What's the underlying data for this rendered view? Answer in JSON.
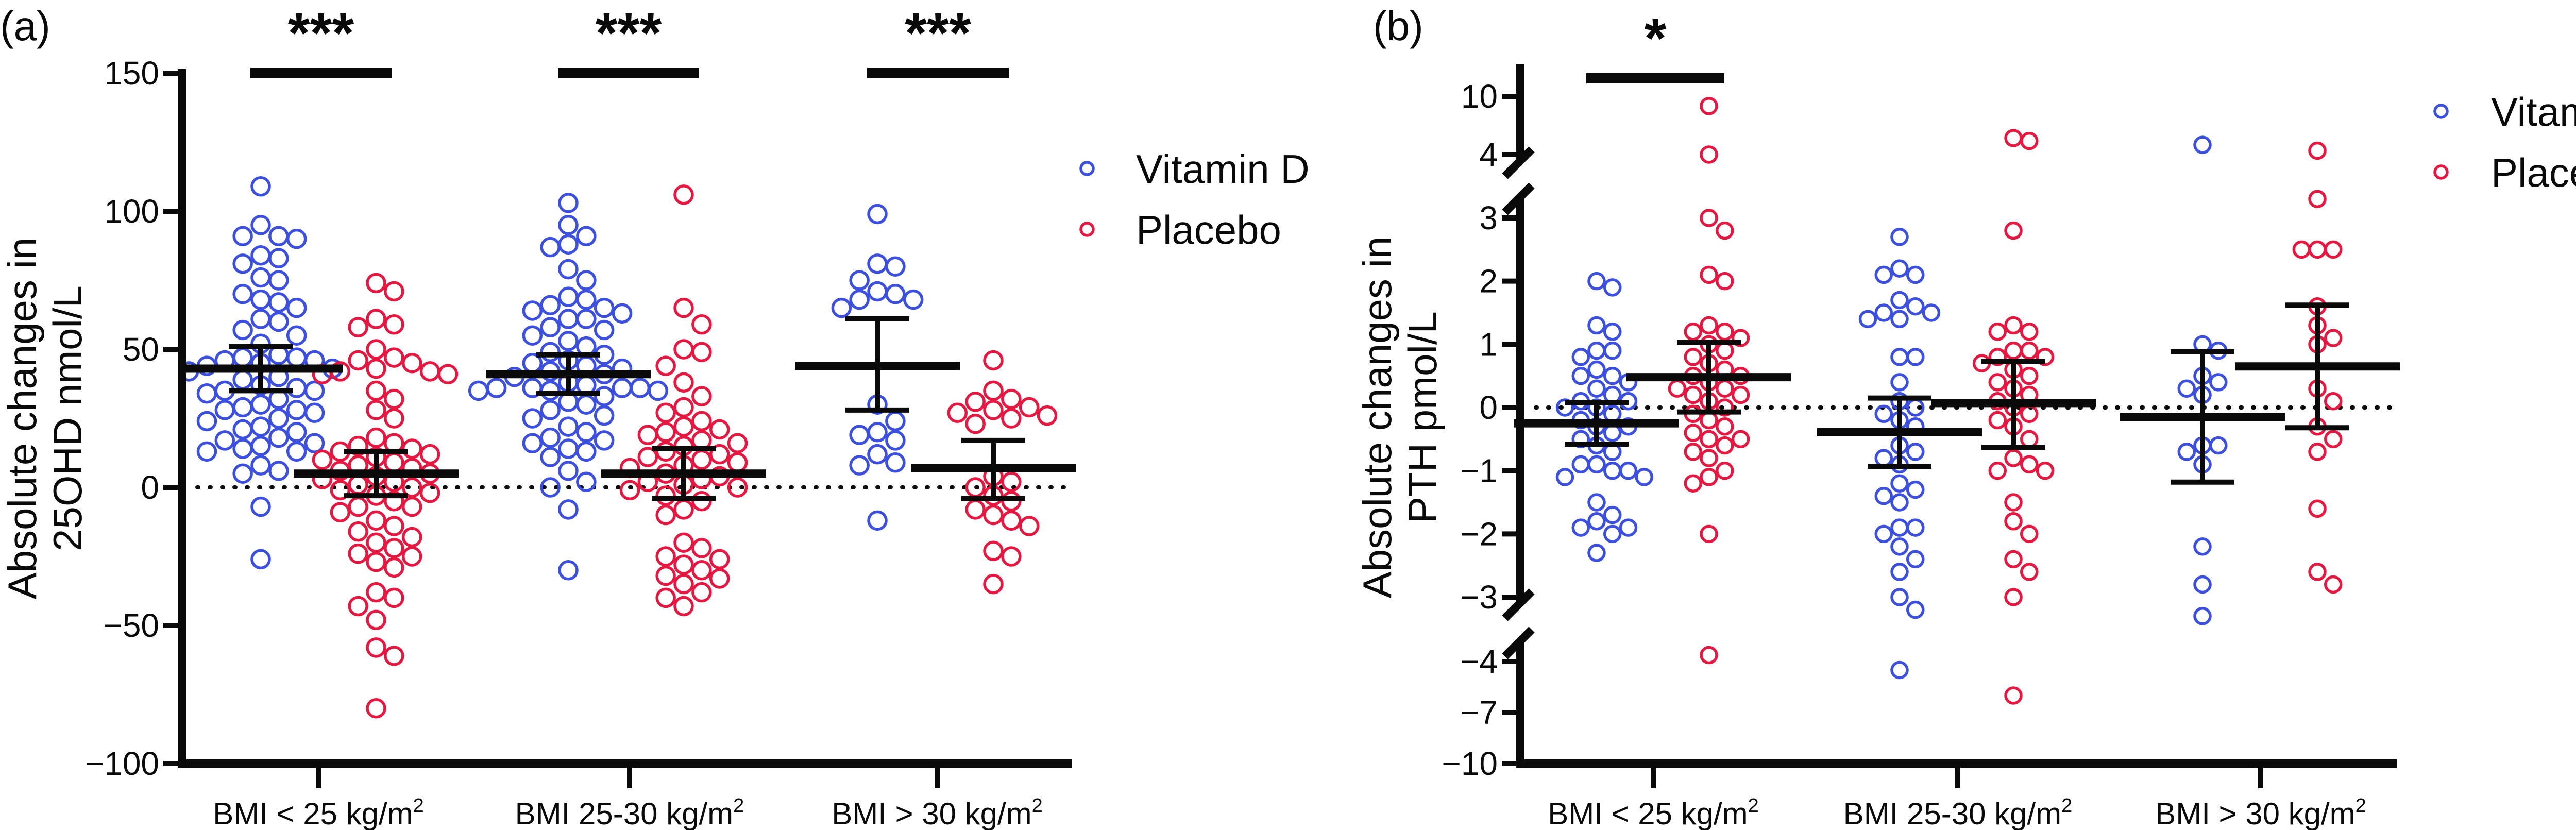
{
  "colors": {
    "vitamin_d": "#3b4fe0",
    "placebo": "#e8173f",
    "ink": "#0a0a0a"
  },
  "legend": {
    "items": [
      {
        "label": "Vitamin D",
        "series": "vitamin_d"
      },
      {
        "label": "Placebo",
        "series": "placebo"
      }
    ]
  },
  "chart_data": [
    {
      "panel_label": "(a)",
      "type": "scatter",
      "subtype": "dot plot with mean ± 95% CI",
      "title": "",
      "xlabel": "",
      "ylabel": "Absolute changes in 25OHD nmol/L",
      "ylabel_lines": [
        "Absolute changes in",
        "25OHD nmol/L"
      ],
      "ylim": [
        -100,
        150
      ],
      "yticks": [
        150,
        100,
        50,
        0,
        -50,
        -100
      ],
      "ytick_labels": [
        "150",
        "100",
        "50",
        "0",
        "−50",
        "−100"
      ],
      "reference_line": 0,
      "categories": [
        "BMI < 25 kg/m²",
        "BMI 25-30 kg/m²",
        "BMI > 30 kg/m²"
      ],
      "category_parts": [
        {
          "base": "BMI < 25 kg/m",
          "sup": "2"
        },
        {
          "base": "BMI 25-30 kg/m",
          "sup": "2"
        },
        {
          "base": "BMI > 30 kg/m",
          "sup": "2"
        }
      ],
      "legend_position": "right",
      "significance": [
        {
          "category": 0,
          "label": "***"
        },
        {
          "category": 1,
          "label": "***"
        },
        {
          "category": 2,
          "label": "***"
        }
      ],
      "series": [
        {
          "name": "Vitamin D",
          "key": "vitamin_d",
          "groups": [
            {
              "mean": 43,
              "ci": [
                35,
                51
              ],
              "values": [
                109,
                95,
                91,
                91,
                90,
                84,
                83,
                81,
                76,
                75,
                70,
                68,
                67,
                65,
                61,
                60,
                57,
                55,
                52,
                48,
                47,
                47,
                46,
                46,
                45,
                44,
                43,
                42,
                40,
                39,
                37,
                36,
                35,
                35,
                34,
                32,
                30,
                29,
                28,
                28,
                27,
                25,
                24,
                22,
                21,
                20,
                18,
                17,
                16,
                15,
                14,
                13,
                13,
                8,
                6,
                5,
                -7,
                -26
              ]
            },
            {
              "mean": 41,
              "ci": [
                34,
                48
              ],
              "values": [
                103,
                95,
                91,
                88,
                87,
                79,
                75,
                69,
                68,
                66,
                65,
                64,
                63,
                61,
                61,
                58,
                57,
                55,
                53,
                51,
                49,
                48,
                46,
                45,
                44,
                43,
                42,
                41,
                40,
                38,
                37,
                36,
                36,
                36,
                36,
                35,
                35,
                35,
                33,
                31,
                30,
                28,
                26,
                25,
                22,
                20,
                18,
                17,
                16,
                14,
                13,
                11,
                6,
                2,
                0,
                -8,
                -30
              ]
            },
            {
              "mean": 44,
              "ci": [
                28,
                61
              ],
              "values": [
                99,
                81,
                80,
                75,
                71,
                70,
                68,
                68,
                65,
                30,
                24,
                20,
                19,
                17,
                12,
                9,
                8,
                -12
              ]
            }
          ]
        },
        {
          "name": "Placebo",
          "key": "placebo",
          "groups": [
            {
              "mean": 5,
              "ci": [
                -3,
                13
              ],
              "values": [
                74,
                71,
                61,
                59,
                58,
                50,
                47,
                46,
                45,
                43,
                42,
                42,
                41,
                41,
                35,
                32,
                28,
                25,
                18,
                16,
                15,
                14,
                13,
                12,
                11,
                10,
                9,
                8,
                7,
                6,
                5,
                4,
                3,
                2,
                1,
                0,
                -1,
                -2,
                -3,
                -5,
                -7,
                -7,
                -9,
                -12,
                -14,
                -16,
                -18,
                -20,
                -22,
                -24,
                -25,
                -27,
                -29,
                -38,
                -40,
                -43,
                -48,
                -58,
                -61,
                -80
              ]
            },
            {
              "mean": 5,
              "ci": [
                -4,
                14
              ],
              "values": [
                106,
                65,
                59,
                50,
                49,
                44,
                38,
                33,
                29,
                27,
                24,
                22,
                21,
                20,
                19,
                17,
                16,
                15,
                13,
                12,
                11,
                10,
                9,
                8,
                7,
                5,
                4,
                3,
                2,
                1,
                0,
                -1,
                -3,
                -5,
                -8,
                -10,
                -20,
                -22,
                -25,
                -26,
                -28,
                -30,
                -32,
                -33,
                -35,
                -38,
                -40,
                -43
              ]
            },
            {
              "mean": 7,
              "ci": [
                -4,
                17
              ],
              "values": [
                46,
                35,
                32,
                31,
                29,
                28,
                27,
                26,
                25,
                23,
                4,
                2,
                0,
                -3,
                -5,
                -8,
                -10,
                -12,
                -14,
                -23,
                -25,
                -35
              ]
            }
          ]
        }
      ]
    },
    {
      "panel_label": "(b)",
      "type": "scatter",
      "subtype": "dot plot with mean ± 95% CI, broken y-axis",
      "title": "",
      "xlabel": "",
      "ylabel": "Absolute changes in PTH pmol/L",
      "ylabel_lines": [
        "Absolute changes in",
        "PTH pmol/L"
      ],
      "ylim": [
        -10,
        10
      ],
      "axis_breaks": [
        [
          3,
          4
        ],
        [
          -4,
          -3
        ]
      ],
      "yticks": [
        10,
        4,
        3,
        2,
        1,
        0,
        -1,
        -2,
        -3,
        -4,
        -7,
        -10
      ],
      "ytick_labels": [
        "10",
        "4",
        "3",
        "2",
        "1",
        "0",
        "−1",
        "−2",
        "−3",
        "−4",
        "−7",
        "−10"
      ],
      "reference_line": 0,
      "categories": [
        "BMI < 25 kg/m²",
        "BMI 25-30 kg/m²",
        "BMI > 30 kg/m²"
      ],
      "category_parts": [
        {
          "base": "BMI < 25 kg/m",
          "sup": "2"
        },
        {
          "base": "BMI 25-30 kg/m",
          "sup": "2"
        },
        {
          "base": "BMI > 30 kg/m",
          "sup": "2"
        }
      ],
      "legend_position": "top-right",
      "significance": [
        {
          "category": 0,
          "label": "*"
        }
      ],
      "series": [
        {
          "name": "Vitamin D",
          "key": "vitamin_d",
          "groups": [
            {
              "mean": -0.25,
              "ci": [
                -0.58,
                0.08
              ],
              "values": [
                2.0,
                1.9,
                1.3,
                1.2,
                0.9,
                0.9,
                0.8,
                0.6,
                0.5,
                0.5,
                0.4,
                0.3,
                0.2,
                0.1,
                0.1,
                0.0,
                0.0,
                -0.1,
                -0.2,
                -0.3,
                -0.3,
                -0.4,
                -0.5,
                -0.6,
                -0.7,
                -0.9,
                -0.9,
                -1.0,
                -1.0,
                -1.1,
                -1.1,
                -1.5,
                -1.7,
                -1.8,
                -1.9,
                -1.9,
                -2.0,
                -2.3
              ]
            },
            {
              "mean": -0.39,
              "ci": [
                -0.93,
                0.15
              ],
              "values": [
                2.7,
                2.2,
                2.1,
                2.1,
                1.7,
                1.6,
                1.5,
                1.5,
                1.4,
                1.4,
                0.8,
                0.8,
                0.4,
                0.1,
                0.0,
                -0.1,
                -0.2,
                -0.3,
                -0.6,
                -0.7,
                -0.8,
                -0.9,
                -1.2,
                -1.3,
                -1.4,
                -1.5,
                -1.9,
                -1.9,
                -2.0,
                -2.2,
                -2.4,
                -2.6,
                -3.0,
                -3.2,
                -4.5
              ]
            },
            {
              "mean": -0.15,
              "ci": [
                -1.18,
                0.88
              ],
              "values": [
                5.0,
                1.0,
                0.9,
                0.5,
                0.4,
                0.3,
                0.2,
                -0.6,
                -0.6,
                -0.7,
                -0.9,
                -2.2,
                -2.8,
                -3.3
              ]
            }
          ]
        },
        {
          "name": "Placebo",
          "key": "placebo",
          "groups": [
            {
              "mean": 0.48,
              "ci": [
                -0.07,
                1.03
              ],
              "values": [
                9.0,
                4.0,
                3.0,
                2.8,
                2.1,
                2.0,
                1.3,
                1.2,
                1.2,
                1.1,
                1.0,
                0.9,
                0.8,
                0.7,
                0.6,
                0.5,
                0.5,
                0.4,
                0.3,
                0.3,
                0.2,
                0.2,
                0.1,
                0.0,
                -0.1,
                -0.2,
                -0.3,
                -0.4,
                -0.5,
                -0.5,
                -0.6,
                -0.7,
                -0.8,
                -1.0,
                -1.1,
                -1.2,
                -2.0,
                -3.9
              ]
            },
            {
              "mean": 0.07,
              "ci": [
                -0.63,
                0.73
              ],
              "values": [
                5.7,
                5.4,
                2.8,
                1.3,
                1.2,
                1.2,
                0.9,
                0.9,
                0.8,
                0.8,
                0.7,
                0.6,
                0.5,
                0.4,
                0.3,
                0.2,
                0.1,
                0.0,
                -0.1,
                -0.2,
                -0.3,
                -0.5,
                -0.8,
                -0.9,
                -1.0,
                -1.0,
                -1.5,
                -1.8,
                -2.0,
                -2.4,
                -2.6,
                -3.0,
                -6.0
              ]
            },
            {
              "mean": 0.65,
              "ci": [
                -0.32,
                1.62
              ],
              "values": [
                4.4,
                3.3,
                2.5,
                2.5,
                2.5,
                1.6,
                1.3,
                1.1,
                1.0,
                0.3,
                0.1,
                -0.3,
                -0.5,
                -0.7,
                -1.6,
                -2.6,
                -2.8
              ]
            }
          ]
        }
      ]
    }
  ]
}
